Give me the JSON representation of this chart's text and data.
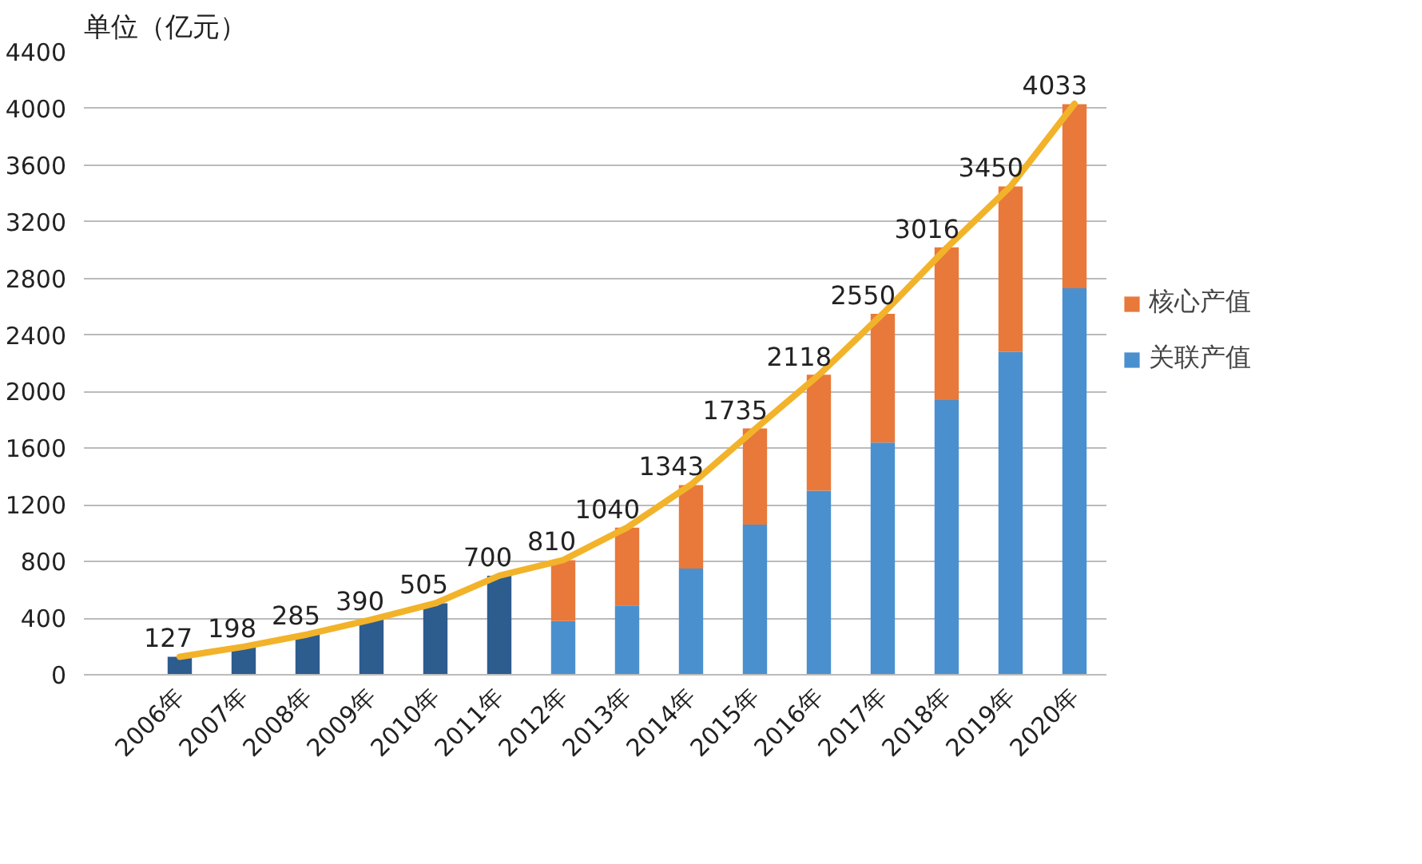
{
  "chart_data": {
    "type": "bar",
    "stacked": true,
    "ylabel": "单位（亿元）",
    "categories": [
      null,
      "2006年",
      "2007年",
      "2008年",
      "2009年",
      "2010年",
      "2011年",
      "2012年",
      "2013年",
      "2014年",
      "2015年",
      "2016年",
      "2017年",
      "2018年",
      "2019年",
      "2020年"
    ],
    "series": [
      {
        "color": "#2d5c8f",
        "values": [
          null,
          127,
          198,
          285,
          390,
          505,
          700,
          null,
          null,
          null,
          null,
          null,
          null,
          null,
          null,
          null
        ]
      },
      {
        "name": "关联产值",
        "color": "#4a90cf",
        "values": [
          null,
          null,
          null,
          null,
          null,
          null,
          null,
          380,
          490,
          750,
          1060,
          1300,
          1640,
          1940,
          2280,
          2730
        ]
      },
      {
        "name": "核心产值",
        "color": "#e8793a",
        "values": [
          null,
          null,
          null,
          null,
          null,
          null,
          null,
          430,
          550,
          590,
          680,
          820,
          910,
          1080,
          1170,
          1300
        ]
      },
      {
        "type": "line",
        "color": "#f2b32a",
        "values": [
          null,
          127,
          198,
          285,
          390,
          505,
          700,
          810,
          1040,
          1343,
          1735,
          2118,
          2550,
          3016,
          3450,
          4033
        ],
        "value_labels": [
          null,
          "127",
          "198",
          "285",
          "390",
          "505",
          "700",
          "810",
          "1040",
          "1343",
          "1735",
          "2118",
          "2550",
          "3016",
          "3450",
          "4033"
        ]
      }
    ],
    "ylim": [
      0,
      4400
    ],
    "yticks": [
      0,
      400,
      800,
      1200,
      1600,
      2000,
      2400,
      2800,
      3200,
      3600,
      4000,
      4400
    ],
    "grid": "y",
    "legend": "right"
  }
}
